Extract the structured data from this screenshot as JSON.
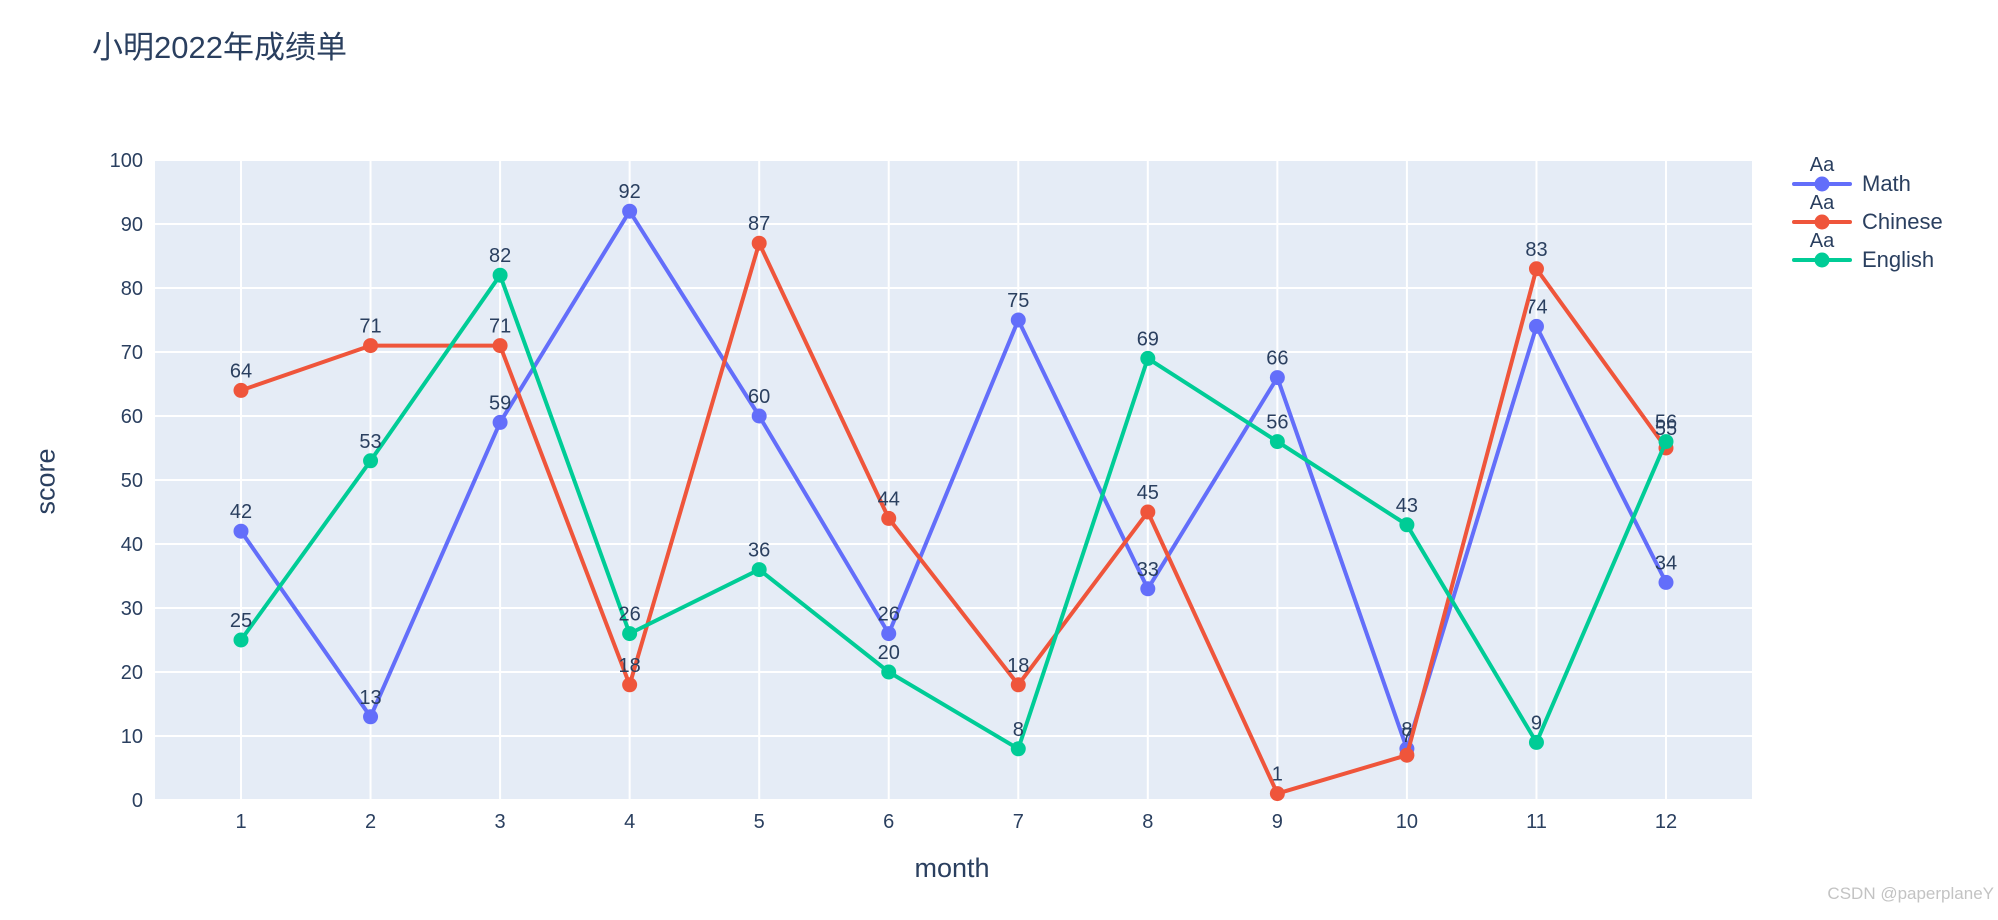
{
  "page": {
    "watermark": "CSDN @paperplaneY"
  },
  "chart_data": {
    "type": "line",
    "title": "小明2022年成绩单",
    "xlabel": "month",
    "ylabel": "score",
    "x": [
      1,
      2,
      3,
      4,
      5,
      6,
      7,
      8,
      9,
      10,
      11,
      12
    ],
    "ylim": [
      0,
      100
    ],
    "ytick_step": 10,
    "grid": true,
    "legend_position": "right-outside-top",
    "legend_marker_text": "Aa",
    "plot_bg": "#E5ECF6",
    "grid_color": "#FFFFFF",
    "text_color": "#2A3F5F",
    "series": [
      {
        "name": "Math",
        "color": "#636EFA",
        "values": [
          42,
          13,
          59,
          92,
          60,
          26,
          75,
          33,
          66,
          8,
          74,
          34
        ]
      },
      {
        "name": "Chinese",
        "color": "#EF553B",
        "values": [
          64,
          71,
          71,
          18,
          87,
          44,
          18,
          45,
          1,
          7,
          83,
          55
        ]
      },
      {
        "name": "English",
        "color": "#00CC96",
        "values": [
          25,
          53,
          82,
          26,
          36,
          20,
          8,
          69,
          56,
          43,
          9,
          56
        ]
      }
    ]
  }
}
